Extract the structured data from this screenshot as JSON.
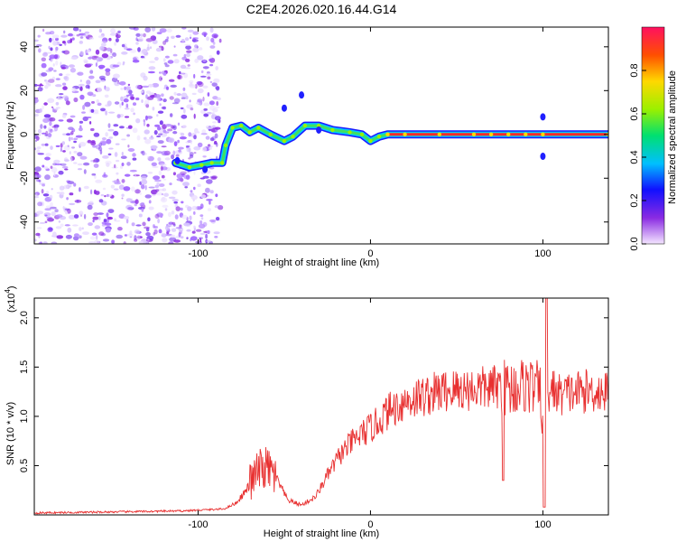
{
  "title": "C2E4.2026.020.16.44.G14",
  "chart_data": [
    {
      "type": "heatmap",
      "title": "C2E4.2026.020.16.44.G14",
      "xlabel": "Height of straight line (km)",
      "ylabel": "Frequency (Hz)",
      "xlim": [
        -195,
        138
      ],
      "ylim": [
        -50,
        49
      ],
      "xticks": [
        -100,
        0,
        100
      ],
      "yticks": [
        -40,
        -20,
        0,
        20,
        40
      ],
      "ridge": [
        {
          "x": -113,
          "y": -13
        },
        {
          "x": -105,
          "y": -15
        },
        {
          "x": -98,
          "y": -14
        },
        {
          "x": -92,
          "y": -13
        },
        {
          "x": -86,
          "y": -13
        },
        {
          "x": -84,
          "y": -5
        },
        {
          "x": -80,
          "y": 3
        },
        {
          "x": -75,
          "y": 4
        },
        {
          "x": -70,
          "y": 1
        },
        {
          "x": -65,
          "y": 3
        },
        {
          "x": -58,
          "y": 0
        },
        {
          "x": -50,
          "y": -3
        },
        {
          "x": -45,
          "y": -1
        },
        {
          "x": -38,
          "y": 4
        },
        {
          "x": -30,
          "y": 4
        },
        {
          "x": -22,
          "y": 2
        },
        {
          "x": -12,
          "y": 1
        },
        {
          "x": -5,
          "y": 0
        },
        {
          "x": 0,
          "y": -3
        },
        {
          "x": 5,
          "y": -1
        },
        {
          "x": 10,
          "y": 0
        },
        {
          "x": 20,
          "y": 0
        },
        {
          "x": 40,
          "y": 0
        },
        {
          "x": 60,
          "y": 0
        },
        {
          "x": 70,
          "y": 0
        },
        {
          "x": 80,
          "y": 0
        },
        {
          "x": 90,
          "y": 0
        },
        {
          "x": 100,
          "y": 0
        },
        {
          "x": 138,
          "y": 0
        }
      ],
      "colorbar": {
        "label": "Normalized spectral amplitude",
        "range": [
          0,
          1
        ],
        "ticks": [
          "0.0",
          "0.2",
          "0.4",
          "0.6",
          "0.8"
        ]
      }
    },
    {
      "type": "line",
      "xlabel": "Height of straight line (km)",
      "ylabel": "SNR (10 * v/v)",
      "yscale_label": "(x10",
      "yscale_exp": "4",
      "xlim": [
        -195,
        138
      ],
      "ylim": [
        0,
        2.2
      ],
      "xticks": [
        -100,
        0,
        100
      ],
      "yticks": [
        "0.5",
        "1.0",
        "1.5",
        "2.0"
      ],
      "series_color": "#e83030",
      "series": [
        {
          "name": "SNR",
          "x": [
            -195,
            -150,
            -110,
            -85,
            -78,
            -72,
            -65,
            -60,
            -55,
            -48,
            -40,
            -32,
            -25,
            -18,
            -12,
            -5,
            0,
            5,
            10,
            15,
            20,
            25,
            30,
            40,
            50,
            60,
            70,
            75,
            80,
            85,
            90,
            95,
            98,
            100,
            103,
            105,
            110,
            120,
            130,
            138
          ],
          "y": [
            0.02,
            0.03,
            0.04,
            0.06,
            0.12,
            0.25,
            0.45,
            0.48,
            0.38,
            0.15,
            0.1,
            0.18,
            0.4,
            0.6,
            0.72,
            0.82,
            0.88,
            0.95,
            1.05,
            1.1,
            1.15,
            1.18,
            1.2,
            1.25,
            1.27,
            1.28,
            1.29,
            1.3,
            1.28,
            1.3,
            1.32,
            1.3,
            1.25,
            1.05,
            1.25,
            1.28,
            1.22,
            1.25,
            1.26,
            1.24
          ]
        }
      ]
    }
  ]
}
